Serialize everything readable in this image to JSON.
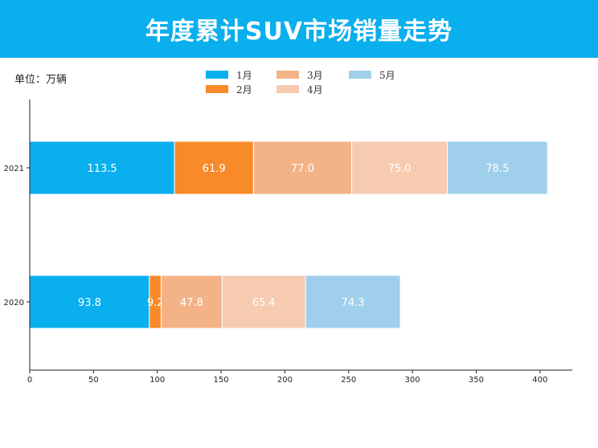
{
  "header": {
    "title": "年度累计SUV市场销量走势"
  },
  "unit_label": "单位：万辆",
  "colors": {
    "header_bg": "#0aafed",
    "series": [
      "#0aafed",
      "#f88a29",
      "#f3b387",
      "#f6cbb0",
      "#9fcfeb"
    ]
  },
  "chart_data": {
    "type": "bar",
    "orientation": "horizontal",
    "stacked": true,
    "categories": [
      "2021",
      "2020"
    ],
    "series": [
      {
        "name": "1月",
        "values": [
          113.5,
          93.8
        ],
        "labels": [
          "113.5",
          "93.8"
        ]
      },
      {
        "name": "2月",
        "values": [
          61.9,
          9.2
        ],
        "labels": [
          "61.9",
          "9.2"
        ]
      },
      {
        "name": "3月",
        "values": [
          77.0,
          47.8
        ],
        "labels": [
          "77.0",
          "47.8"
        ]
      },
      {
        "name": "4月",
        "values": [
          75.0,
          65.4
        ],
        "labels": [
          "75.0",
          "65.4"
        ]
      },
      {
        "name": "5月",
        "values": [
          78.5,
          74.3
        ],
        "labels": [
          "78.5",
          "74.3"
        ]
      }
    ],
    "xlim": [
      0,
      425
    ],
    "xticks": [
      0,
      50,
      100,
      150,
      200,
      250,
      300,
      350,
      400
    ],
    "xtick_labels": [
      "0",
      "50",
      "100",
      "150",
      "200",
      "250",
      "300",
      "350",
      "400"
    ],
    "grid": false,
    "legend_position": "top-center"
  }
}
